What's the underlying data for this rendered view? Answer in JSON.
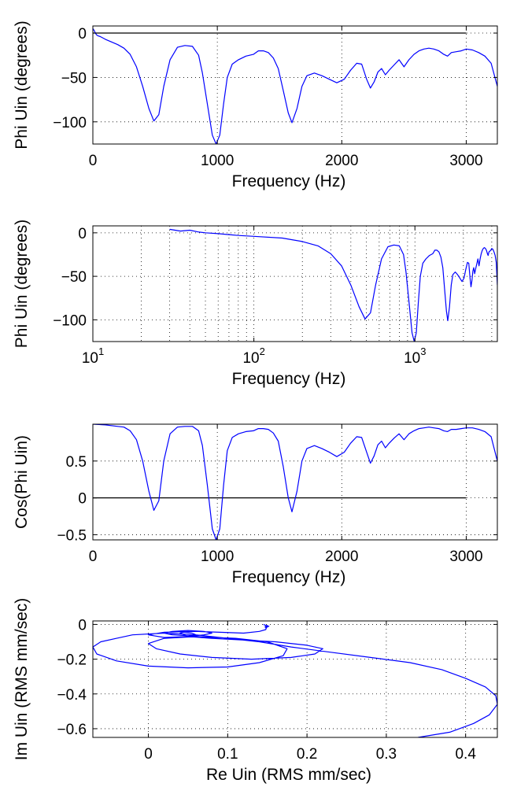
{
  "chart_data": [
    {
      "type": "line",
      "xlabel": "Frequency (Hz)",
      "ylabel": "Phi Uin (degrees)",
      "xlim": [
        0,
        3250
      ],
      "ylim": [
        -125,
        8
      ],
      "xscale": "linear",
      "xticks": [
        0,
        1000,
        2000,
        3000
      ],
      "xtick_labels": [
        "0",
        "1000",
        "2000",
        "3000"
      ],
      "yticks": [
        0,
        -50,
        -100
      ],
      "ytick_labels": [
        "0",
        "−50",
        "−100"
      ],
      "grid": true,
      "reference_line": {
        "y": 0,
        "x_range": [
          0,
          3000
        ],
        "color": "#000000"
      },
      "line_color": "#0000ff",
      "series": [
        {
          "x": [
            0,
            10,
            20,
            30,
            40,
            60,
            100,
            150,
            200,
            250,
            300,
            350,
            400,
            450,
            490,
            530,
            570,
            620,
            680,
            740,
            800,
            850,
            880,
            920,
            960,
            990,
            1020,
            1050,
            1080,
            1120,
            1170,
            1230,
            1290,
            1330,
            1370,
            1410,
            1450,
            1490,
            1530,
            1570,
            1600,
            1640,
            1680,
            1720,
            1780,
            1840,
            1900,
            1960,
            2020,
            2070,
            2120,
            2160,
            2200,
            2230,
            2260,
            2290,
            2320,
            2350,
            2380,
            2420,
            2460,
            2500,
            2540,
            2580,
            2620,
            2660,
            2700,
            2740,
            2780,
            2820,
            2850,
            2880,
            2920,
            2960,
            3000,
            3050,
            3100,
            3150,
            3200,
            3250
          ],
          "y": [
            5,
            3,
            0,
            -2,
            -3,
            -4,
            -7,
            -10,
            -13,
            -17,
            -24,
            -38,
            -60,
            -85,
            -99,
            -92,
            -60,
            -30,
            -16,
            -14,
            -15,
            -25,
            -45,
            -80,
            -115,
            -125,
            -115,
            -80,
            -50,
            -35,
            -30,
            -26,
            -24,
            -20,
            -20,
            -22,
            -28,
            -40,
            -65,
            -90,
            -101,
            -85,
            -60,
            -48,
            -45,
            -48,
            -52,
            -56,
            -52,
            -42,
            -34,
            -35,
            -52,
            -62,
            -55,
            -44,
            -40,
            -47,
            -42,
            -36,
            -30,
            -38,
            -30,
            -24,
            -20,
            -18,
            -17,
            -18,
            -20,
            -24,
            -26,
            -22,
            -21,
            -20,
            -18,
            -19,
            -22,
            -26,
            -34,
            -60
          ]
        }
      ]
    },
    {
      "type": "line",
      "xlabel": "Frequency (Hz)",
      "ylabel": "Phi Uin (degrees)",
      "xlim": [
        10,
        3250
      ],
      "ylim": [
        -125,
        8
      ],
      "xscale": "log",
      "xticks": [
        10,
        100,
        1000
      ],
      "xtick_labels": [
        {
          "base": "10",
          "exp": "1"
        },
        {
          "base": "10",
          "exp": "2"
        },
        {
          "base": "10",
          "exp": "3"
        }
      ],
      "yticks": [
        0,
        -50,
        -100
      ],
      "ytick_labels": [
        "0",
        "−50",
        "−100"
      ],
      "grid": true,
      "line_color": "#0000ff",
      "series": [
        {
          "x": [
            30,
            35,
            40,
            45,
            50,
            60,
            70,
            80,
            100,
            150,
            200,
            250,
            300,
            350,
            400,
            450,
            490,
            530,
            570,
            620,
            680,
            740,
            800,
            850,
            880,
            920,
            960,
            990,
            1020,
            1050,
            1080,
            1120,
            1170,
            1230,
            1290,
            1330,
            1370,
            1410,
            1450,
            1490,
            1530,
            1570,
            1600,
            1640,
            1680,
            1720,
            1780,
            1840,
            1900,
            1960,
            2020,
            2070,
            2120,
            2160,
            2200,
            2230,
            2260,
            2290,
            2320,
            2350,
            2380,
            2420,
            2460,
            2500,
            2540,
            2580,
            2620,
            2660,
            2700,
            2740,
            2780,
            2820,
            2850,
            2880,
            2920,
            2960,
            3000,
            3050,
            3100,
            3150,
            3200,
            3250
          ],
          "y": [
            4,
            2,
            3,
            1,
            0,
            -1,
            -2,
            -3,
            -4,
            -6,
            -10,
            -15,
            -24,
            -38,
            -60,
            -85,
            -99,
            -92,
            -60,
            -30,
            -16,
            -14,
            -15,
            -25,
            -45,
            -80,
            -115,
            -125,
            -115,
            -80,
            -50,
            -35,
            -30,
            -26,
            -24,
            -20,
            -20,
            -22,
            -28,
            -40,
            -65,
            -90,
            -101,
            -85,
            -60,
            -48,
            -45,
            -48,
            -52,
            -56,
            -52,
            -42,
            -34,
            -35,
            -52,
            -62,
            -55,
            -44,
            -40,
            -47,
            -42,
            -36,
            -30,
            -38,
            -30,
            -24,
            -20,
            -18,
            -17,
            -18,
            -20,
            -24,
            -26,
            -22,
            -21,
            -20,
            -18,
            -19,
            -22,
            -26,
            -34,
            -60
          ]
        }
      ]
    },
    {
      "type": "line",
      "xlabel": "Frequency (Hz)",
      "ylabel": "Cos(Phi Uin)",
      "xlim": [
        0,
        3250
      ],
      "ylim": [
        -0.57,
        1.0
      ],
      "xscale": "linear",
      "xticks": [
        0,
        1000,
        2000,
        3000
      ],
      "xtick_labels": [
        "0",
        "1000",
        "2000",
        "3000"
      ],
      "yticks": [
        0.5,
        0,
        -0.5
      ],
      "ytick_labels": [
        "0.5",
        "0",
        "−0.5"
      ],
      "grid": true,
      "reference_line": {
        "y": 0,
        "x_range": [
          0,
          3000
        ],
        "color": "#000000"
      },
      "line_color": "#0000ff",
      "series": [
        {
          "x": [
            0,
            100,
            200,
            250,
            300,
            350,
            400,
            450,
            490,
            530,
            570,
            620,
            680,
            740,
            800,
            850,
            880,
            920,
            960,
            990,
            1020,
            1050,
            1080,
            1120,
            1170,
            1230,
            1290,
            1330,
            1370,
            1410,
            1450,
            1490,
            1530,
            1570,
            1600,
            1640,
            1680,
            1720,
            1780,
            1840,
            1900,
            1960,
            2020,
            2070,
            2120,
            2160,
            2200,
            2230,
            2260,
            2290,
            2320,
            2350,
            2380,
            2420,
            2460,
            2500,
            2540,
            2580,
            2620,
            2660,
            2700,
            2740,
            2780,
            2820,
            2850,
            2880,
            2920,
            2960,
            3000,
            3050,
            3100,
            3150,
            3200,
            3250
          ],
          "y": [
            1.0,
            0.99,
            0.97,
            0.96,
            0.91,
            0.79,
            0.5,
            0.09,
            -0.17,
            -0.04,
            0.5,
            0.87,
            0.96,
            0.97,
            0.97,
            0.91,
            0.71,
            0.17,
            -0.42,
            -0.57,
            -0.42,
            0.17,
            0.64,
            0.82,
            0.87,
            0.9,
            0.91,
            0.94,
            0.94,
            0.93,
            0.88,
            0.77,
            0.42,
            0.0,
            -0.19,
            0.09,
            0.5,
            0.67,
            0.71,
            0.67,
            0.62,
            0.56,
            0.62,
            0.74,
            0.83,
            0.82,
            0.62,
            0.47,
            0.57,
            0.72,
            0.77,
            0.68,
            0.74,
            0.81,
            0.87,
            0.79,
            0.87,
            0.91,
            0.94,
            0.95,
            0.96,
            0.95,
            0.94,
            0.91,
            0.9,
            0.93,
            0.93,
            0.94,
            0.95,
            0.95,
            0.93,
            0.9,
            0.83,
            0.5
          ]
        }
      ]
    },
    {
      "type": "line",
      "xlabel": "Re Uin (RMS mm/sec)",
      "ylabel": "Im Uin (RMS mm/sec)",
      "xlim": [
        -0.07,
        0.44
      ],
      "ylim": [
        -0.65,
        0.02
      ],
      "xscale": "linear",
      "xticks": [
        0,
        0.1,
        0.2,
        0.3,
        0.4
      ],
      "xtick_labels": [
        "0",
        "0.1",
        "0.2",
        "0.3",
        "0.4"
      ],
      "yticks": [
        0,
        -0.2,
        -0.4,
        -0.6
      ],
      "ytick_labels": [
        "0",
        "−0.2",
        "−0.4",
        "−0.6"
      ],
      "grid": true,
      "line_color": "#0000ff",
      "series": [
        {
          "x": [
            0.145,
            0.15,
            0.148,
            0.152,
            0.147,
            0.15,
            0.148,
            0.14,
            0.12,
            0.09,
            0.06,
            0.02,
            0.0,
            0.02,
            0.05,
            0.07,
            0.08,
            0.07,
            0.05,
            0.03,
            0.02,
            0.03,
            0.05,
            0.06,
            0.055,
            0.045,
            0.04,
            0.05,
            0.08,
            0.12,
            0.16,
            0.2,
            0.22,
            0.21,
            0.18,
            0.13,
            0.08,
            0.04,
            0.01,
            0.0,
            0.02,
            0.06,
            0.11,
            0.15,
            0.175,
            0.17,
            0.14,
            0.1,
            0.05,
            0.0,
            -0.04,
            -0.065,
            -0.07,
            -0.06,
            -0.04,
            -0.02,
            0.02,
            0.06,
            0.1,
            0.14,
            0.18,
            0.23,
            0.28,
            0.33,
            0.37,
            0.4,
            0.425,
            0.438,
            0.44,
            0.43,
            0.41,
            0.38,
            0.34
          ],
          "y": [
            0.0,
            -0.01,
            -0.02,
            -0.01,
            -0.015,
            -0.005,
            -0.03,
            -0.04,
            -0.05,
            -0.045,
            -0.04,
            -0.045,
            -0.06,
            -0.075,
            -0.07,
            -0.06,
            -0.05,
            -0.04,
            -0.035,
            -0.04,
            -0.05,
            -0.06,
            -0.065,
            -0.06,
            -0.05,
            -0.045,
            -0.05,
            -0.07,
            -0.08,
            -0.09,
            -0.1,
            -0.12,
            -0.14,
            -0.17,
            -0.19,
            -0.2,
            -0.19,
            -0.17,
            -0.14,
            -0.11,
            -0.08,
            -0.07,
            -0.08,
            -0.1,
            -0.14,
            -0.18,
            -0.22,
            -0.245,
            -0.25,
            -0.24,
            -0.21,
            -0.17,
            -0.13,
            -0.1,
            -0.08,
            -0.06,
            -0.05,
            -0.06,
            -0.08,
            -0.1,
            -0.13,
            -0.16,
            -0.19,
            -0.22,
            -0.26,
            -0.31,
            -0.36,
            -0.41,
            -0.46,
            -0.52,
            -0.57,
            -0.62,
            -0.65
          ]
        }
      ]
    }
  ]
}
